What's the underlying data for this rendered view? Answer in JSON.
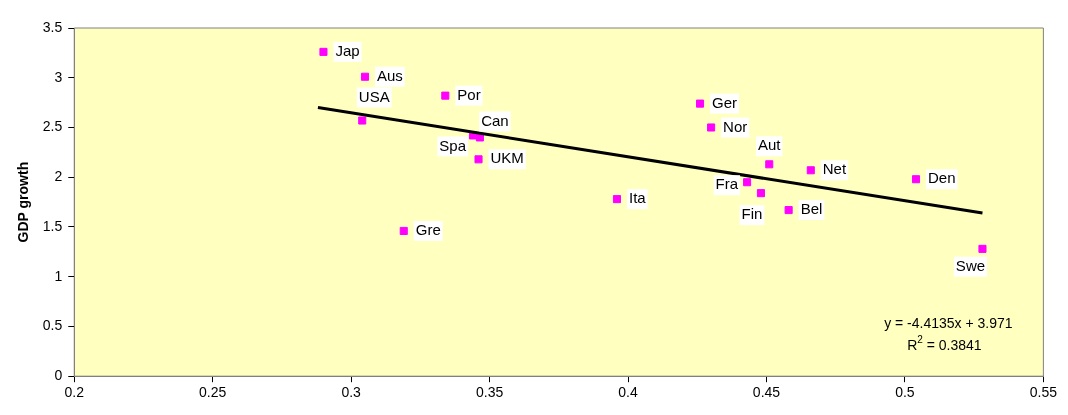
{
  "chart_data": {
    "type": "scatter",
    "ylabel": "GDP growth",
    "xlim": [
      0.2,
      0.55
    ],
    "xticks": [
      0.2,
      0.25,
      0.3,
      0.35,
      0.4,
      0.45,
      0.5,
      0.55
    ],
    "ylim": [
      0,
      3.5
    ],
    "yticks": [
      0,
      0.5,
      1,
      1.5,
      2,
      2.5,
      3,
      3.5
    ],
    "grid": false,
    "legend": false,
    "series": [
      {
        "marker": "square",
        "color": "#ff00ff",
        "x": [
          0.29,
          0.305,
          0.304,
          0.334,
          0.3465,
          0.344,
          0.346,
          0.319,
          0.396,
          0.426,
          0.43,
          0.451,
          0.466,
          0.504,
          0.443,
          0.448,
          0.458,
          0.528
        ],
        "values": [
          3.26,
          3.01,
          2.57,
          2.82,
          2.4,
          2.42,
          2.18,
          1.46,
          1.78,
          2.74,
          2.5,
          2.13,
          2.07,
          1.98,
          1.95,
          1.84,
          1.67,
          1.28
        ],
        "value_labels": [
          "Jap",
          "Aus",
          "USA",
          "Por",
          "Can",
          "Spa",
          "UKM",
          "Gre",
          "Ita",
          "Ger",
          "Nor",
          "Aut",
          "Net",
          "Den",
          "Fra",
          "Fin",
          "Bel",
          "Swe"
        ]
      },
      {
        "type": "line",
        "marker": "none",
        "color": "#000000",
        "x": [
          0.288,
          0.528
        ],
        "values": [
          2.7,
          1.64
        ]
      }
    ],
    "annotations": [
      "y = -4.4135x + 3.971",
      "R$^{2}$ = 0.3841"
    ]
  }
}
